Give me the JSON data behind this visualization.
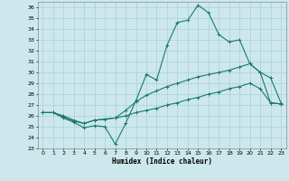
{
  "xlabel": "Humidex (Indice chaleur)",
  "bg_color": "#cce8ec",
  "line_color": "#1a7a6e",
  "grid_color": "#aacfd8",
  "xlim": [
    -0.5,
    23.5
  ],
  "ylim": [
    23,
    36.5
  ],
  "xticks": [
    0,
    1,
    2,
    3,
    4,
    5,
    6,
    7,
    8,
    9,
    10,
    11,
    12,
    13,
    14,
    15,
    16,
    17,
    18,
    19,
    20,
    21,
    22,
    23
  ],
  "yticks": [
    23,
    24,
    25,
    26,
    27,
    28,
    29,
    30,
    31,
    32,
    33,
    34,
    35,
    36
  ],
  "line1_x": [
    0,
    1,
    2,
    3,
    4,
    5,
    6,
    7,
    8,
    9,
    10,
    11,
    12,
    13,
    14,
    15,
    16,
    17,
    18,
    19,
    20,
    21,
    22,
    23
  ],
  "line1_y": [
    26.3,
    26.3,
    25.8,
    25.4,
    24.9,
    25.1,
    25.0,
    23.4,
    25.3,
    27.4,
    29.8,
    29.3,
    32.5,
    34.6,
    34.8,
    36.2,
    35.5,
    33.5,
    32.8,
    33.0,
    30.8,
    30.0,
    29.5,
    27.2
  ],
  "line2_x": [
    0,
    1,
    2,
    3,
    4,
    5,
    6,
    7,
    8,
    9,
    10,
    11,
    12,
    13,
    14,
    15,
    16,
    17,
    18,
    19,
    20,
    21,
    22,
    23
  ],
  "line2_y": [
    26.3,
    26.3,
    26.0,
    25.6,
    25.3,
    25.6,
    25.7,
    25.8,
    26.5,
    27.3,
    27.9,
    28.3,
    28.7,
    29.0,
    29.3,
    29.6,
    29.8,
    30.0,
    30.2,
    30.5,
    30.8,
    30.0,
    27.2,
    27.1
  ],
  "line3_x": [
    0,
    1,
    2,
    3,
    4,
    5,
    6,
    7,
    8,
    9,
    10,
    11,
    12,
    13,
    14,
    15,
    16,
    17,
    18,
    19,
    20,
    21,
    22,
    23
  ],
  "line3_y": [
    26.3,
    26.3,
    25.9,
    25.5,
    25.3,
    25.6,
    25.7,
    25.8,
    26.0,
    26.3,
    26.5,
    26.7,
    27.0,
    27.2,
    27.5,
    27.7,
    28.0,
    28.2,
    28.5,
    28.7,
    29.0,
    28.5,
    27.2,
    27.1
  ]
}
